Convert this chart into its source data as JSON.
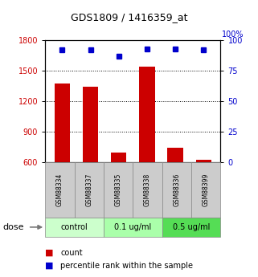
{
  "title": "GDS1809 / 1416359_at",
  "samples": [
    "GSM88334",
    "GSM88337",
    "GSM88335",
    "GSM88338",
    "GSM88336",
    "GSM88399"
  ],
  "counts": [
    1370,
    1340,
    690,
    1540,
    740,
    620
  ],
  "percentiles": [
    92,
    92,
    87,
    93,
    93,
    92
  ],
  "bar_color": "#cc0000",
  "dot_color": "#0000cc",
  "ylim_left": [
    600,
    1800
  ],
  "ylim_right": [
    0,
    100
  ],
  "yticks_left": [
    600,
    900,
    1200,
    1500,
    1800
  ],
  "yticks_right": [
    0,
    25,
    50,
    75,
    100
  ],
  "grid_values": [
    900,
    1200,
    1500
  ],
  "label_color_left": "#cc0000",
  "label_color_right": "#0000cc",
  "sample_box_color": "#cccccc",
  "group_colors": [
    "#ccffcc",
    "#aaffaa",
    "#55dd55"
  ],
  "group_labels": [
    "control",
    "0.1 ug/ml",
    "0.5 ug/ml"
  ],
  "group_boundaries": [
    0,
    2,
    4,
    6
  ],
  "dose_label": "dose",
  "legend_count": "count",
  "legend_percentile": "percentile rank within the sample"
}
